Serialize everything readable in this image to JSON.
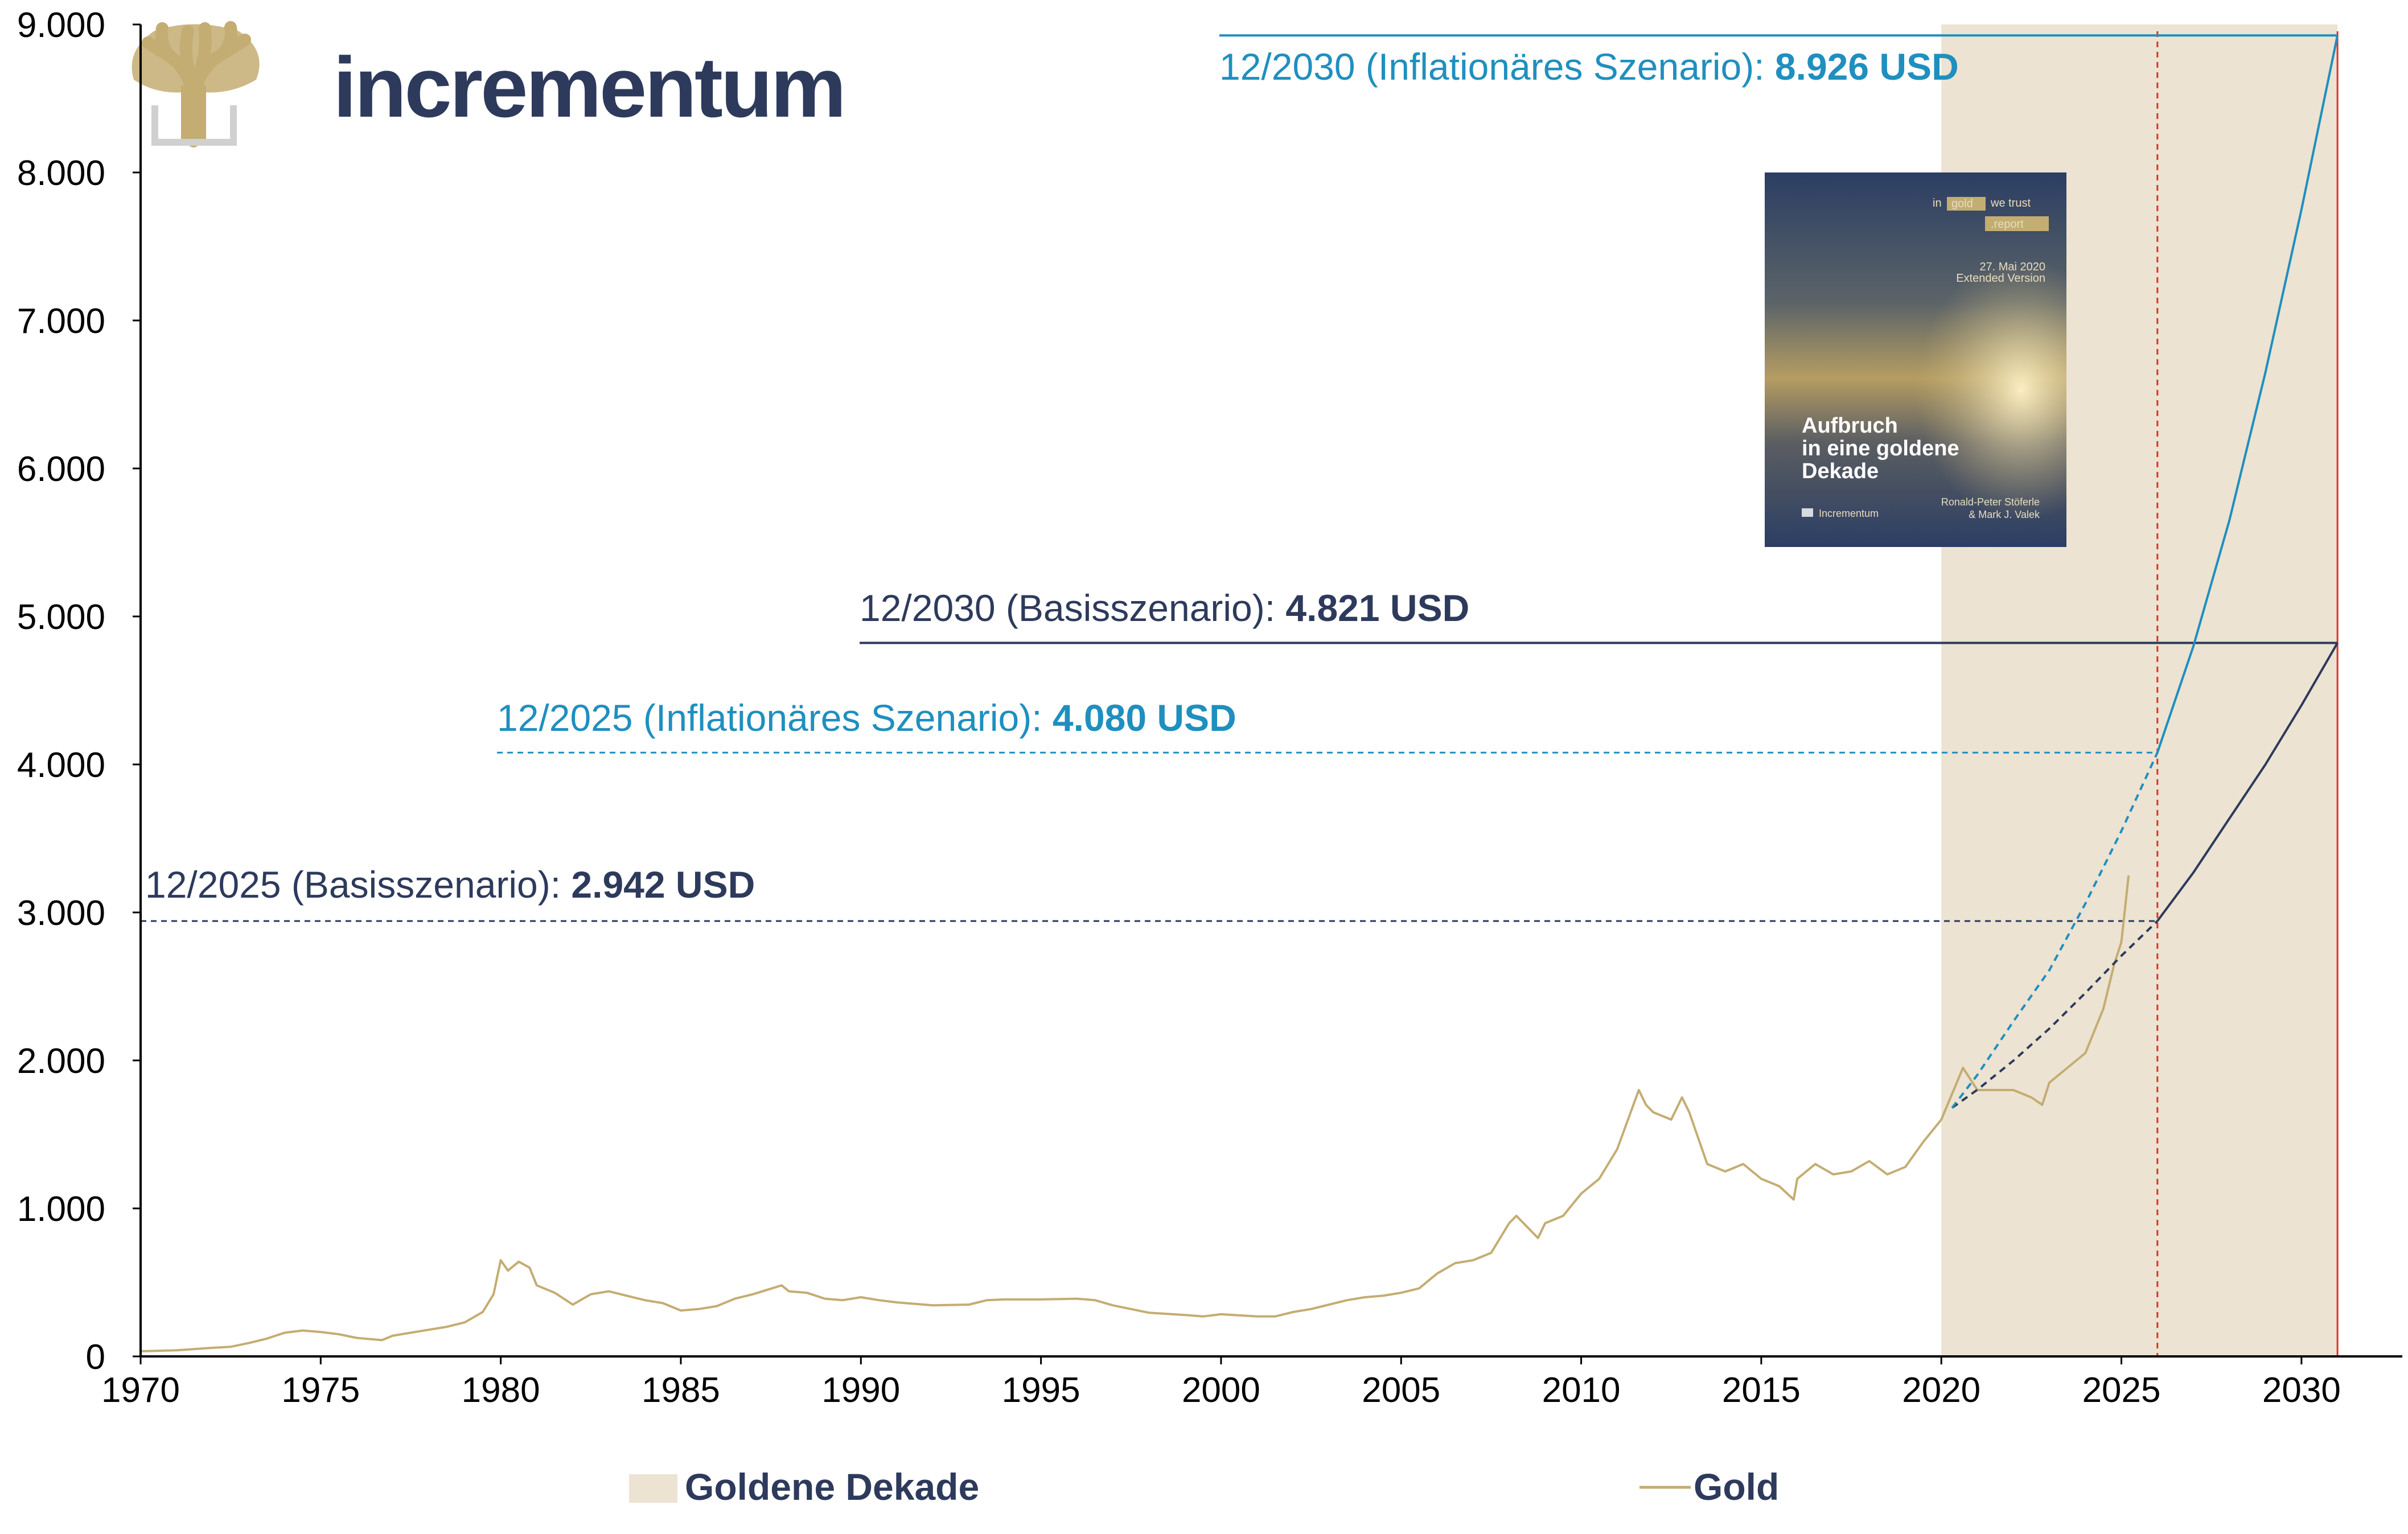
{
  "brand": {
    "name": "incrementum"
  },
  "cover": {
    "line1_in": "in",
    "line1_gold": "gold",
    "line1_rest": "we trust",
    "line2": ".report",
    "date": "27. Mai 2020",
    "edition": "Extended Version",
    "title1": "Aufbruch",
    "title2": "in eine goldene",
    "title3": "Dekade",
    "author1": "Ronald-Peter Stöferle",
    "author2": "& Mark J. Valek",
    "brand": "Incrementum"
  },
  "legend": {
    "shade_label": "Goldene Dekade",
    "gold_label": "Gold"
  },
  "annotations": {
    "inf2030_label": "12/2030 (Inflationäres Szenario): ",
    "inf2030_value": "8.926 USD",
    "base2030_label": "12/2030 (Basisszenario): ",
    "base2030_value": "4.821 USD",
    "inf2025_label": "12/2025 (Inflationäres Szenario): ",
    "inf2025_value": "4.080 USD",
    "base2025_label": "12/2025 (Basisszenario): ",
    "base2025_value": "2.942 USD"
  },
  "colors": {
    "gold": "#c4ad72",
    "shade": "#ece3d2",
    "inflation": "#1f8fbf",
    "base": "#2d3a5c",
    "vline": "#e0302a"
  },
  "chart_data": {
    "type": "line",
    "xlim": [
      1970,
      2032.8
    ],
    "ylim": [
      0,
      9000
    ],
    "x_ticks": [
      1970,
      1975,
      1980,
      1985,
      1990,
      1995,
      2000,
      2005,
      2010,
      2015,
      2020,
      2025,
      2030
    ],
    "x_tick_labels": [
      "1970",
      "1975",
      "1980",
      "1985",
      "1990",
      "1995",
      "2000",
      "2005",
      "2010",
      "2015",
      "2020",
      "2025",
      "2030"
    ],
    "y_ticks": [
      0,
      1000,
      2000,
      3000,
      4000,
      5000,
      6000,
      7000,
      8000,
      9000
    ],
    "y_tick_labels": [
      "0",
      "1.000",
      "2.000",
      "3.000",
      "4.000",
      "5.000",
      "6.000",
      "7.000",
      "8.000",
      "9.000"
    ],
    "shaded_region": {
      "from": 2020,
      "to": 2031
    },
    "vertical_markers": [
      2026,
      2031
    ],
    "series": [
      {
        "name": "Gold",
        "x": [
          1970,
          1971,
          1972,
          1972.5,
          1973,
          1973.5,
          1974,
          1974.5,
          1975,
          1975.5,
          1976,
          1976.7,
          1977,
          1977.5,
          1978,
          1978.5,
          1979,
          1979.5,
          1979.8,
          1980,
          1980.2,
          1980.5,
          1980.8,
          1981,
          1981.5,
          1982,
          1982.5,
          1983,
          1983.5,
          1984,
          1984.5,
          1985,
          1985.5,
          1986,
          1986.5,
          1987,
          1987.8,
          1988,
          1988.5,
          1989,
          1989.5,
          1990,
          1990.5,
          1991,
          1992,
          1993,
          1993.5,
          1994,
          1995,
          1996,
          1996.5,
          1997,
          1997.5,
          1998,
          1999,
          1999.5,
          2000,
          2001,
          2001.5,
          2002,
          2002.5,
          2003,
          2003.5,
          2004,
          2004.5,
          2005,
          2005.5,
          2006,
          2006.5,
          2007,
          2007.5,
          2008,
          2008.2,
          2008.8,
          2009,
          2009.5,
          2010,
          2010.5,
          2011,
          2011.6,
          2011.8,
          2012,
          2012.5,
          2012.8,
          2013,
          2013.5,
          2014,
          2014.5,
          2015,
          2015.5,
          2015.9,
          2016,
          2016.5,
          2017,
          2017.5,
          2018,
          2018.5,
          2019,
          2019.5,
          2020,
          2020.6,
          2021,
          2021.5,
          2022,
          2022.5,
          2022.8,
          2023,
          2023.5,
          2024,
          2024.5,
          2024.8,
          2025,
          2025.2
        ],
        "values": [
          35,
          41,
          58,
          65,
          90,
          120,
          160,
          175,
          165,
          150,
          125,
          110,
          140,
          160,
          180,
          200,
          230,
          300,
          420,
          650,
          580,
          640,
          600,
          480,
          430,
          350,
          420,
          440,
          410,
          380,
          360,
          310,
          320,
          340,
          390,
          420,
          480,
          440,
          430,
          390,
          380,
          400,
          380,
          365,
          345,
          350,
          380,
          385,
          385,
          390,
          380,
          345,
          320,
          295,
          280,
          270,
          285,
          270,
          270,
          300,
          320,
          350,
          380,
          400,
          410,
          430,
          460,
          560,
          630,
          650,
          700,
          900,
          950,
          800,
          900,
          950,
          1100,
          1200,
          1400,
          1800,
          1700,
          1650,
          1600,
          1750,
          1650,
          1300,
          1250,
          1300,
          1200,
          1150,
          1060,
          1200,
          1300,
          1230,
          1250,
          1320,
          1230,
          1280,
          1450,
          1600,
          1950,
          1800,
          1800,
          1800,
          1750,
          1700,
          1850,
          1950,
          2050,
          2350,
          2650,
          2800,
          3250
        ]
      },
      {
        "name": "",
        "x": [
          2020.3,
          2021,
          2022,
          2023,
          2024,
          2025,
          2026
        ],
        "values": [
          1680,
          1802,
          1998,
          2215,
          2456,
          2707,
          2942
        ]
      },
      {
        "name": "",
        "x": [
          2026,
          2027,
          2028,
          2029,
          2030,
          2031
        ],
        "values": [
          2942,
          3270,
          3635,
          4000,
          4400,
          4821
        ]
      },
      {
        "name": "",
        "x": [
          2020.3,
          2021,
          2022,
          2023,
          2024,
          2025,
          2026
        ],
        "values": [
          1680,
          1902,
          2263,
          2610,
          3060,
          3550,
          4080
        ]
      },
      {
        "name": "",
        "x": [
          2026,
          2027,
          2028,
          2029,
          2030,
          2031
        ],
        "values": [
          4080,
          4800,
          5650,
          6650,
          7750,
          8926
        ]
      }
    ]
  }
}
